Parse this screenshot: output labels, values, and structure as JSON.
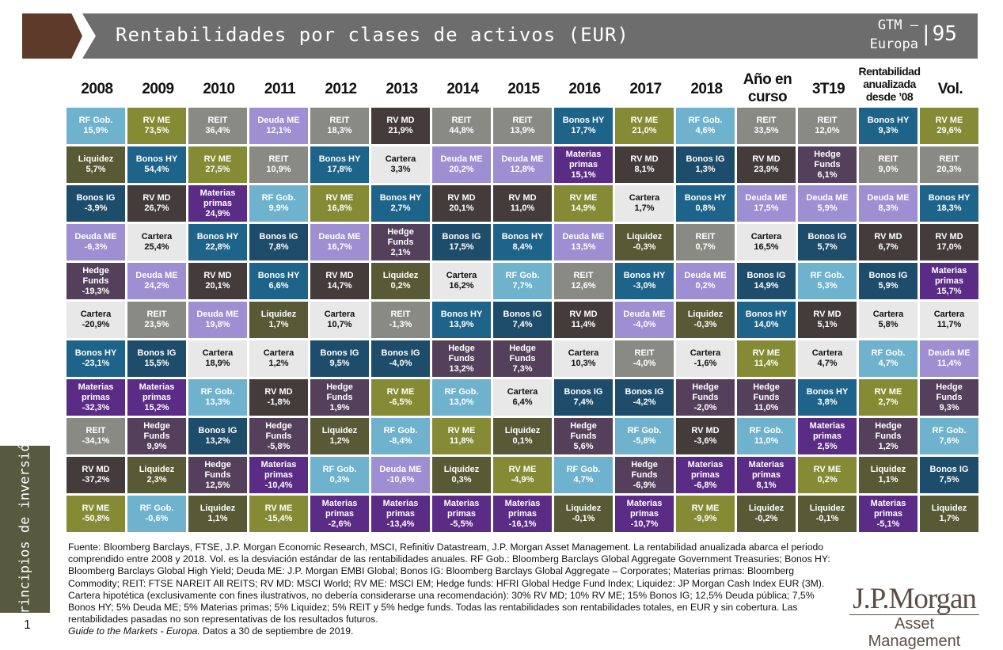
{
  "header": {
    "title": "Rentabilidades por clases de activos (EUR)",
    "series": "GTM –",
    "region": "Europa",
    "page": "95"
  },
  "columns": [
    "2008",
    "2009",
    "2010",
    "2011",
    "2012",
    "2013",
    "2014",
    "2015",
    "2016",
    "2017",
    "2018",
    "Año en curso",
    "3T19",
    "Rentabilidad anualizada desde ’08",
    "Vol."
  ],
  "colors": {
    "RF Gob.": "#6fb2cd",
    "RV ME": "#858b35",
    "REIT": "#8a8a85",
    "Deuda ME": "#9d8fd1",
    "RV MD": "#433c3b",
    "Liquidez": "#575a35",
    "Bonos HY": "#1e6389",
    "Bonos IG": "#1e4c6b",
    "Materias primas": "#5a2c86",
    "Hedge Funds": "#55405b",
    "Cartera": "#e8e8e8"
  },
  "grid": [
    [
      [
        "RF Gob.",
        "15,9%"
      ],
      [
        "Liquidez",
        "5,7%"
      ],
      [
        "Bonos IG",
        "-3,9%"
      ],
      [
        "Deuda ME",
        "-6,3%"
      ],
      [
        "Hedge Funds",
        "-19,3%"
      ],
      [
        "Cartera",
        "-20,9%"
      ],
      [
        "Bonos HY",
        "-23,1%"
      ],
      [
        "Materias primas",
        "-32,3%"
      ],
      [
        "REIT",
        "-34,1%"
      ],
      [
        "RV MD",
        "-37,2%"
      ],
      [
        "RV ME",
        "-50,8%"
      ]
    ],
    [
      [
        "RV ME",
        "73,5%"
      ],
      [
        "Bonos HY",
        "54,4%"
      ],
      [
        "RV MD",
        "26,7%"
      ],
      [
        "Cartera",
        "25,4%"
      ],
      [
        "Deuda ME",
        "24,2%"
      ],
      [
        "REIT",
        "23,5%"
      ],
      [
        "Bonos IG",
        "15,5%"
      ],
      [
        "Materias primas",
        "15,2%"
      ],
      [
        "Hedge Funds",
        "9,9%"
      ],
      [
        "Liquidez",
        "2,3%"
      ],
      [
        "RF Gob.",
        "-0,6%"
      ]
    ],
    [
      [
        "REIT",
        "36,4%"
      ],
      [
        "RV ME",
        "27,5%"
      ],
      [
        "Materias primas",
        "24,9%"
      ],
      [
        "Bonos HY",
        "22,8%"
      ],
      [
        "RV MD",
        "20,1%"
      ],
      [
        "Deuda ME",
        "19,8%"
      ],
      [
        "Cartera",
        "18,9%"
      ],
      [
        "RF Gob.",
        "13,3%"
      ],
      [
        "Bonos IG",
        "13,2%"
      ],
      [
        "Hedge Funds",
        "12,5%"
      ],
      [
        "Liquidez",
        "1,1%"
      ]
    ],
    [
      [
        "Deuda ME",
        "12,1%"
      ],
      [
        "REIT",
        "10,9%"
      ],
      [
        "RF Gob.",
        "9,9%"
      ],
      [
        "Bonos IG",
        "7,8%"
      ],
      [
        "Bonos HY",
        "6,6%"
      ],
      [
        "Liquidez",
        "1,7%"
      ],
      [
        "Cartera",
        "1,2%"
      ],
      [
        "RV MD",
        "-1,8%"
      ],
      [
        "Hedge Funds",
        "-5,8%"
      ],
      [
        "Materias primas",
        "-10,4%"
      ],
      [
        "RV ME",
        "-15,4%"
      ]
    ],
    [
      [
        "REIT",
        "18,3%"
      ],
      [
        "Bonos HY",
        "17,8%"
      ],
      [
        "RV ME",
        "16,8%"
      ],
      [
        "Deuda ME",
        "16,7%"
      ],
      [
        "RV MD",
        "14,7%"
      ],
      [
        "Cartera",
        "10,7%"
      ],
      [
        "Bonos IG",
        "9,5%"
      ],
      [
        "Hedge Funds",
        "1,9%"
      ],
      [
        "Liquidez",
        "1,2%"
      ],
      [
        "RF Gob.",
        "0,3%"
      ],
      [
        "Materias primas",
        "-2,6%"
      ]
    ],
    [
      [
        "RV MD",
        "21,9%"
      ],
      [
        "Cartera",
        "3,3%"
      ],
      [
        "Bonos HY",
        "2,7%"
      ],
      [
        "Hedge Funds",
        "2,1%"
      ],
      [
        "Liquidez",
        "0,2%"
      ],
      [
        "REIT",
        "-1,3%"
      ],
      [
        "Bonos IG",
        "-4,0%"
      ],
      [
        "RV ME",
        "-6,5%"
      ],
      [
        "RF Gob.",
        "-8,4%"
      ],
      [
        "Deuda ME",
        "-10,6%"
      ],
      [
        "Materias primas",
        "-13,4%"
      ]
    ],
    [
      [
        "REIT",
        "44,8%"
      ],
      [
        "Deuda ME",
        "20,2%"
      ],
      [
        "RV MD",
        "20,1%"
      ],
      [
        "Bonos IG",
        "17,5%"
      ],
      [
        "Cartera",
        "16,2%"
      ],
      [
        "Bonos HY",
        "13,9%"
      ],
      [
        "Hedge Funds",
        "13,2%"
      ],
      [
        "RF Gob.",
        "13,0%"
      ],
      [
        "RV ME",
        "11,8%"
      ],
      [
        "Liquidez",
        "0,3%"
      ],
      [
        "Materias primas",
        "-5,5%"
      ]
    ],
    [
      [
        "REIT",
        "13,9%"
      ],
      [
        "Deuda ME",
        "12,8%"
      ],
      [
        "RV MD",
        "11,0%"
      ],
      [
        "Bonos HY",
        "8,4%"
      ],
      [
        "RF Gob.",
        "7,7%"
      ],
      [
        "Bonos IG",
        "7,4%"
      ],
      [
        "Hedge Funds",
        "7,3%"
      ],
      [
        "Cartera",
        "6,4%"
      ],
      [
        "Liquidez",
        "0,1%"
      ],
      [
        "RV ME",
        "-4,9%"
      ],
      [
        "Materias primas",
        "-16,1%"
      ]
    ],
    [
      [
        "Bonos HY",
        "17,7%"
      ],
      [
        "Materias primas",
        "15,1%"
      ],
      [
        "RV ME",
        "14,9%"
      ],
      [
        "Deuda ME",
        "13,5%"
      ],
      [
        "REIT",
        "12,6%"
      ],
      [
        "RV MD",
        "11,4%"
      ],
      [
        "Cartera",
        "10,3%"
      ],
      [
        "Bonos IG",
        "7,4%"
      ],
      [
        "Hedge Funds",
        "5,6%"
      ],
      [
        "RF Gob.",
        "4,7%"
      ],
      [
        "Liquidez",
        "-0,1%"
      ]
    ],
    [
      [
        "RV ME",
        "21,0%"
      ],
      [
        "RV MD",
        "8,1%"
      ],
      [
        "Cartera",
        "1,7%"
      ],
      [
        "Liquidez",
        "-0,3%"
      ],
      [
        "Bonos HY",
        "-3,0%"
      ],
      [
        "Deuda ME",
        "-4,0%"
      ],
      [
        "REIT",
        "-4,0%"
      ],
      [
        "Bonos IG",
        "-4,2%"
      ],
      [
        "RF Gob.",
        "-5,8%"
      ],
      [
        "Hedge Funds",
        "-6,9%"
      ],
      [
        "Materias primas",
        "-10,7%"
      ]
    ],
    [
      [
        "RF Gob.",
        "4,6%"
      ],
      [
        "Bonos IG",
        "1,3%"
      ],
      [
        "Bonos HY",
        "0,8%"
      ],
      [
        "REIT",
        "0,7%"
      ],
      [
        "Deuda ME",
        "0,2%"
      ],
      [
        "Liquidez",
        "-0,3%"
      ],
      [
        "Cartera",
        "-1,6%"
      ],
      [
        "Hedge Funds",
        "-2,0%"
      ],
      [
        "RV MD",
        "-3,6%"
      ],
      [
        "Materias primas",
        "-6,8%"
      ],
      [
        "RV ME",
        "-9,9%"
      ]
    ],
    [
      [
        "REIT",
        "33,5%"
      ],
      [
        "RV MD",
        "23,9%"
      ],
      [
        "Deuda ME",
        "17,5%"
      ],
      [
        "Cartera",
        "16,5%"
      ],
      [
        "Bonos IG",
        "14,9%"
      ],
      [
        "Bonos HY",
        "14,0%"
      ],
      [
        "RV ME",
        "11,4%"
      ],
      [
        "Hedge Funds",
        "11,0%"
      ],
      [
        "RF Gob.",
        "11,0%"
      ],
      [
        "Materias primas",
        "8,1%"
      ],
      [
        "Liquidez",
        "-0,2%"
      ]
    ],
    [
      [
        "REIT",
        "12,0%"
      ],
      [
        "Hedge Funds",
        "6,1%"
      ],
      [
        "Deuda ME",
        "5,9%"
      ],
      [
        "Bonos IG",
        "5,7%"
      ],
      [
        "RF Gob.",
        "5,3%"
      ],
      [
        "RV MD",
        "5,1%"
      ],
      [
        "Cartera",
        "4,7%"
      ],
      [
        "Bonos HY",
        "3,8%"
      ],
      [
        "Materias primas",
        "2,5%"
      ],
      [
        "RV ME",
        "0,2%"
      ],
      [
        "Liquidez",
        "-0,1%"
      ]
    ],
    [
      [
        "Bonos HY",
        "9,3%"
      ],
      [
        "REIT",
        "9,0%"
      ],
      [
        "Deuda ME",
        "8,3%"
      ],
      [
        "RV MD",
        "6,7%"
      ],
      [
        "Bonos IG",
        "5,9%"
      ],
      [
        "Cartera",
        "5,8%"
      ],
      [
        "RF Gob.",
        "4,7%"
      ],
      [
        "RV ME",
        "2,7%"
      ],
      [
        "Hedge Funds",
        "1,2%"
      ],
      [
        "Liquidez",
        "1,1%"
      ],
      [
        "Materias primas",
        "-5,1%"
      ]
    ],
    [
      [
        "RV ME",
        "29,6%"
      ],
      [
        "REIT",
        "20,3%"
      ],
      [
        "Bonos HY",
        "18,3%"
      ],
      [
        "RV MD",
        "17,0%"
      ],
      [
        "Materias primas",
        "15,7%"
      ],
      [
        "Cartera",
        "11,7%"
      ],
      [
        "Deuda ME",
        "11,4%"
      ],
      [
        "Hedge Funds",
        "9,3%"
      ],
      [
        "RF Gob.",
        "7,6%"
      ],
      [
        "Bonos IG",
        "7,5%"
      ],
      [
        "Liquidez",
        "1,7%"
      ]
    ]
  ],
  "sidebar": {
    "section": "Principios de inversión",
    "slide_number": "1"
  },
  "footnote": {
    "body": "Fuente: Bloomberg Barclays, FTSE, J.P. Morgan Economic Research, MSCI, Refinitiv Datastream, J.P. Morgan Asset Management. La rentabilidad anualizada abarca el periodo comprendido entre 2008 y 2018.  Vol. es la desviación estándar de las rentabilidades anuales. RF Gob.: Bloomberg Barclays Global Aggregate Government Treasuries; Bonos HY: Bloomberg Barclays Global High Yield; Deuda ME: J.P. Morgan EMBI Global; Bonos IG: Bloomberg Barclays Global Aggregate – Corporates; Materias primas: Bloomberg Commodity; REIT: FTSE NAREIT All REITS;  RV MD: MSCI World; RV ME: MSCI EM; Hedge funds: HFRI Global Hedge Fund Index; Liquidez: JP Morgan Cash Index EUR (3M). Cartera hipotética (exclusivamente con fines ilustrativos, no debería considerarse una recomendación): 30% RV MD; 10% RV ME; 15% Bonos IG; 12,5% Deuda pública; 7,5% Bonos HY; 5% Deuda ME; 5% Materias primas; 5% Liquidez; 5% REIT y 5% hedge funds. Todas las rentabilidades son rentabilidades totales, en EUR y sin cobertura. Las rentabilidades pasadas no son representativas de los resultados futuros.",
    "guide": "Guide to the Markets - Europa.",
    "date": " Datos a 30 de septiembre de 2019."
  },
  "logo": {
    "name": "J.P.Morgan",
    "sub": "Asset Management"
  }
}
